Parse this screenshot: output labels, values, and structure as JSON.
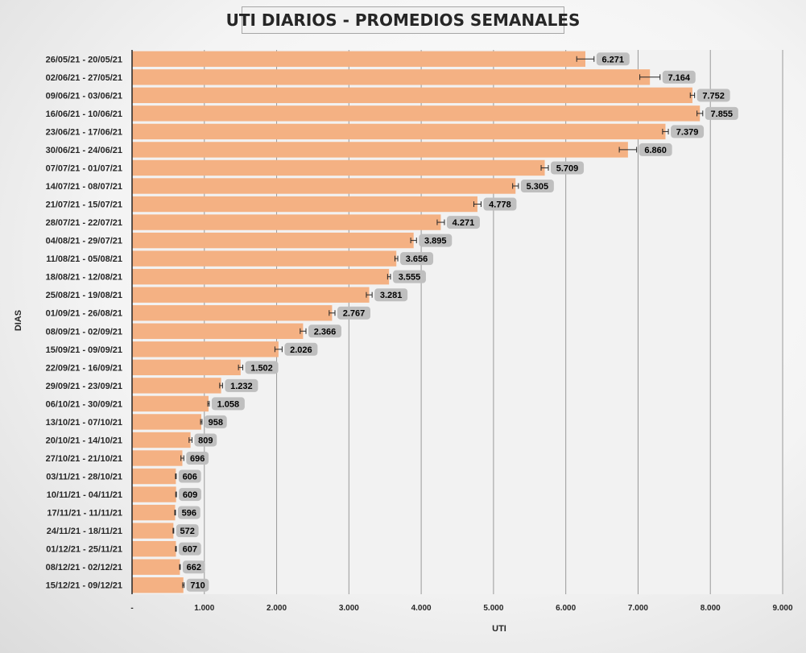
{
  "chart_data": {
    "type": "bar",
    "orientation": "horizontal",
    "title": "UTI DIARIOS - PROMEDIOS SEMANALES",
    "xlabel": "UTI",
    "ylabel": "DIAS",
    "xlim": [
      0,
      9000
    ],
    "xticks": [
      0,
      1000,
      2000,
      3000,
      4000,
      5000,
      6000,
      7000,
      8000,
      9000
    ],
    "xtick_labels": [
      "-",
      "1.000",
      "2.000",
      "3.000",
      "4.000",
      "5.000",
      "6.000",
      "7.000",
      "8.000",
      "9.000"
    ],
    "grid": true,
    "error_bars": true,
    "colors": {
      "bar": "#f4b183",
      "label_bg": "#bfbfbf",
      "grid": "#999999",
      "plot_bg": "#f2f2f2"
    },
    "categories": [
      "26/05/21 - 20/05/21",
      "02/06/21 - 27/05/21",
      "09/06/21 - 03/06/21",
      "16/06/21 - 10/06/21",
      "23/06/21 - 17/06/21",
      "30/06/21 - 24/06/21",
      "07/07/21 - 01/07/21",
      "14/07/21 - 08/07/21",
      "21/07/21 - 15/07/21",
      "28/07/21 - 22/07/21",
      "04/08/21 - 29/07/21",
      "11/08/21 - 05/08/21",
      "18/08/21 - 12/08/21",
      "25/08/21 - 19/08/21",
      "01/09/21 - 26/08/21",
      "08/09/21 - 02/09/21",
      "15/09/21 - 09/09/21",
      "22/09/21 - 16/09/21",
      "29/09/21 - 23/09/21",
      "06/10/21 - 30/09/21",
      "13/10/21 - 07/10/21",
      "20/10/21 - 14/10/21",
      "27/10/21 - 21/10/21",
      "03/11/21 - 28/10/21",
      "10/11/21 - 04/11/21",
      "17/11/21 - 11/11/21",
      "24/11/21 - 18/11/21",
      "01/12/21 - 25/11/21",
      "08/12/21 - 02/12/21",
      "15/12/21 - 09/12/21"
    ],
    "values": [
      6271,
      7164,
      7752,
      7855,
      7379,
      6860,
      5709,
      5305,
      4778,
      4271,
      3895,
      3656,
      3555,
      3281,
      2767,
      2366,
      2026,
      1502,
      1232,
      1058,
      958,
      809,
      696,
      606,
      609,
      596,
      572,
      607,
      662,
      710
    ],
    "value_labels": [
      "6.271",
      "7.164",
      "7.752",
      "7.855",
      "7.379",
      "6.860",
      "5.709",
      "5.305",
      "4.778",
      "4.271",
      "3.895",
      "3.656",
      "3.555",
      "3.281",
      "2.767",
      "2.366",
      "2.026",
      "1.502",
      "1.232",
      "1.058",
      "958",
      "809",
      "696",
      "606",
      "609",
      "596",
      "572",
      "607",
      "662",
      "710"
    ],
    "errors": [
      120,
      140,
      30,
      40,
      40,
      120,
      50,
      40,
      50,
      50,
      40,
      20,
      20,
      40,
      40,
      40,
      50,
      30,
      20,
      10,
      10,
      20,
      20,
      5,
      5,
      5,
      5,
      5,
      5,
      10
    ]
  }
}
